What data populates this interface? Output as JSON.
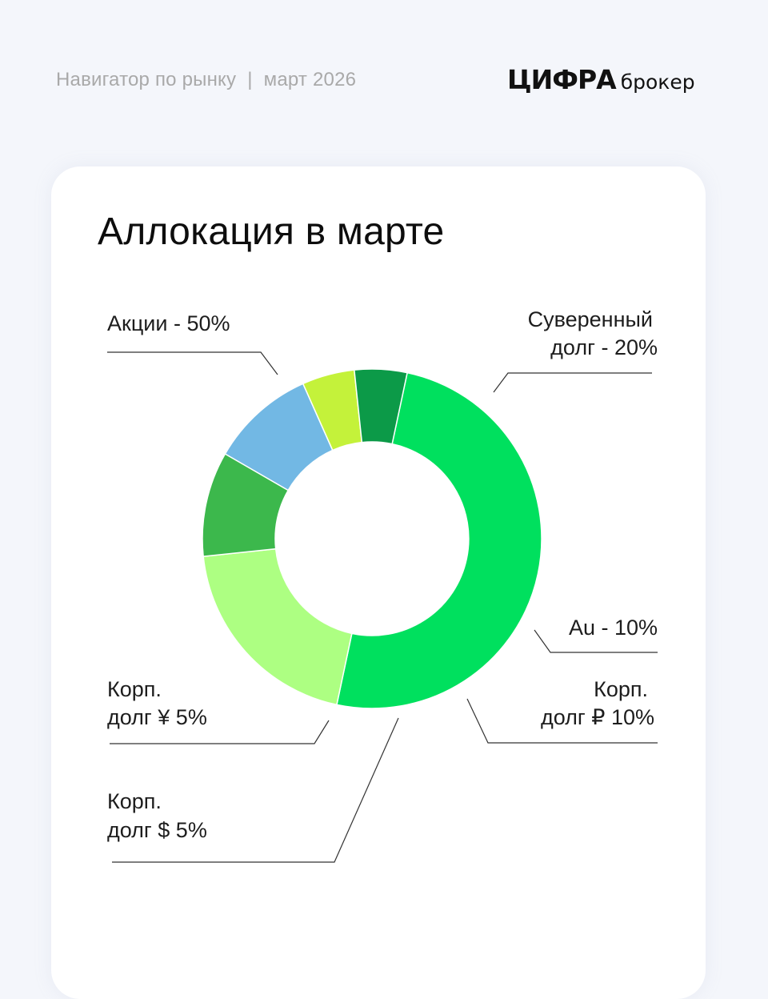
{
  "header": {
    "subtitle_left": "Навигатор по рынку",
    "separator": "|",
    "subtitle_right": "март 2026",
    "logo_word": "ЦИФРА",
    "logo_sub": "брокер"
  },
  "chart_data": {
    "type": "pie",
    "title": "Аллокация в марте",
    "slices": [
      {
        "name": "Акции",
        "value": 50,
        "color": "#00e05e",
        "label_lines": [
          "Акции - 50%"
        ]
      },
      {
        "name": "Суверенный долг",
        "value": 20,
        "color": "#adff82",
        "label_lines": [
          "Суверенный",
          "долг - 20%"
        ]
      },
      {
        "name": "Au",
        "value": 10,
        "color": "#3cb84c",
        "label_lines": [
          "Au - 10%"
        ]
      },
      {
        "name": "Корп. долг ₽",
        "value": 10,
        "color": "#72b8e4",
        "label_lines": [
          "Корп.",
          "долг ₽ 10%"
        ]
      },
      {
        "name": "Корп. долг $",
        "value": 5,
        "color": "#c4f23a",
        "label_lines": [
          "Корп.",
          "долг $ 5%"
        ]
      },
      {
        "name": "Корп. долг ¥",
        "value": 5,
        "color": "#0c9a48",
        "label_lines": [
          "Корп.",
          "долг ¥ 5%"
        ]
      }
    ]
  }
}
